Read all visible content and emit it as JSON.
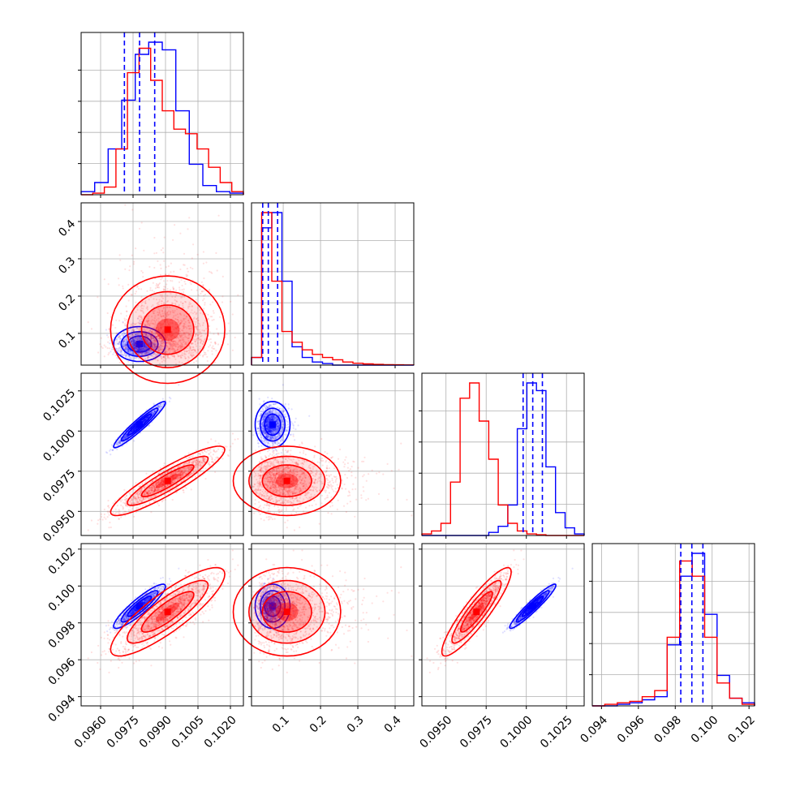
{
  "chart_data": {
    "type": "scatter",
    "subtype": "corner-plot",
    "n_params": 4,
    "grid": true,
    "colors": {
      "blue": "#0000ff",
      "red": "#ff0000"
    },
    "axes": [
      {
        "range": [
          0.0951,
          0.1026
        ],
        "ticks": [
          0.096,
          0.0975,
          0.099,
          0.1005,
          0.102
        ],
        "tick_labels": [
          "0.0960",
          "0.0975",
          "0.0990",
          "0.1005",
          "0.1020"
        ]
      },
      {
        "range": [
          0.015,
          0.45
        ],
        "ticks": [
          0.1,
          0.2,
          0.3,
          0.4
        ],
        "tick_labels": [
          "0.1",
          "0.2",
          "0.3",
          "0.4"
        ]
      },
      {
        "range": [
          0.0935,
          0.1036
        ],
        "ticks": [
          0.095,
          0.0975,
          0.1,
          0.1025
        ],
        "tick_labels": [
          "0.0950",
          "0.0975",
          "0.1000",
          "0.1025"
        ]
      },
      {
        "range": [
          0.0935,
          0.1023
        ],
        "ticks": [
          0.094,
          0.096,
          0.098,
          0.1,
          0.102
        ],
        "tick_labels": [
          "0.094",
          "0.096",
          "0.098",
          "0.100",
          "0.102"
        ]
      }
    ],
    "quantiles_blue": [
      [
        0.0971,
        0.0978,
        0.0985
      ],
      [
        0.045,
        0.06,
        0.085
      ],
      [
        0.0998,
        0.1004,
        0.101
      ],
      [
        0.0983,
        0.0989,
        0.0995
      ]
    ],
    "series": [
      {
        "color": "#0000ff",
        "mean": [
          0.0978,
          0.065,
          0.1004,
          0.0989
        ],
        "sd": [
          0.0005,
          0.02,
          0.0006,
          0.0005
        ],
        "corr": [
          [
            0,
            2,
            0.95
          ],
          [
            0,
            3,
            0.9
          ],
          [
            2,
            3,
            0.95
          ]
        ],
        "hist": [
          [
            0.02,
            0.08,
            0.3,
            0.62,
            0.92,
            1.0,
            0.95,
            0.55,
            0.2,
            0.06,
            0.02,
            0.01
          ],
          [
            0.05,
            0.9,
            1.0,
            0.55,
            0.12,
            0.05,
            0.02,
            0.01,
            0.0,
            0.0,
            0.0,
            0.0,
            0.0,
            0.0,
            0.0,
            0.0
          ],
          [
            0.0,
            0.0,
            0.0,
            0.0,
            0.0,
            0.0,
            0.0,
            0.02,
            0.06,
            0.2,
            0.7,
            1.0,
            0.95,
            0.45,
            0.15,
            0.05,
            0.01
          ],
          [
            0.0,
            0.0,
            0.01,
            0.02,
            0.04,
            0.06,
            0.4,
            0.85,
            1.0,
            0.6,
            0.2,
            0.05,
            0.02
          ]
        ]
      },
      {
        "color": "#ff0000",
        "mean": [
          0.0991,
          0.1,
          0.0969,
          0.0986
        ],
        "sd": [
          0.0011,
          0.06,
          0.0009,
          0.001
        ],
        "corr": [
          [
            0,
            2,
            0.9
          ],
          [
            0,
            3,
            0.85
          ],
          [
            2,
            3,
            0.9
          ]
        ],
        "hist": [
          [
            0.0,
            0.01,
            0.05,
            0.3,
            0.8,
            0.96,
            0.75,
            0.55,
            0.43,
            0.4,
            0.3,
            0.18,
            0.08,
            0.02
          ],
          [
            0.05,
            1.0,
            0.55,
            0.22,
            0.15,
            0.1,
            0.07,
            0.05,
            0.035,
            0.02,
            0.012,
            0.008,
            0.005,
            0.003,
            0.002,
            0.001
          ],
          [
            0.01,
            0.03,
            0.08,
            0.35,
            0.9,
            1.0,
            0.75,
            0.5,
            0.2,
            0.08,
            0.03,
            0.01,
            0.005,
            0.0,
            0.0,
            0.0,
            0.0
          ],
          [
            0.0,
            0.01,
            0.02,
            0.03,
            0.06,
            0.1,
            0.45,
            0.95,
            0.85,
            0.45,
            0.15,
            0.05,
            0.01
          ]
        ]
      }
    ]
  }
}
